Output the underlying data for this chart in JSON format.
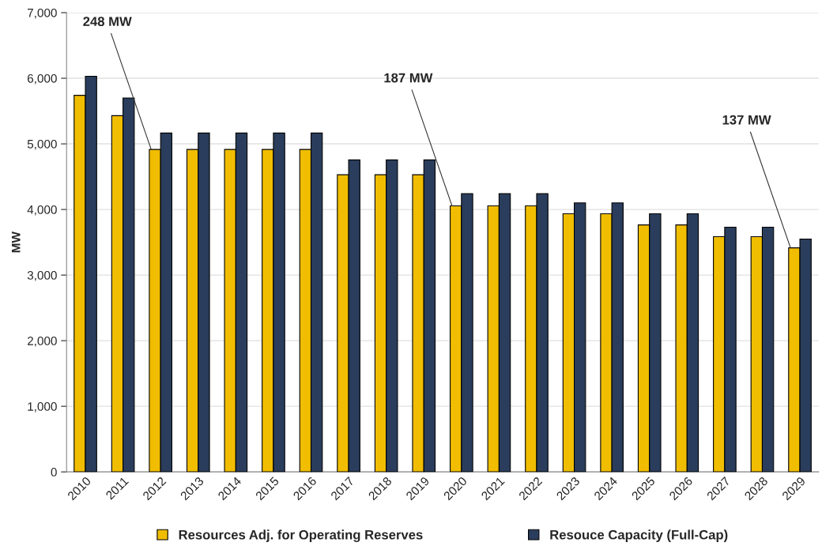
{
  "chart_data": {
    "type": "bar",
    "ylabel": "MW",
    "categories": [
      "2010",
      "2011",
      "2012",
      "2013",
      "2014",
      "2015",
      "2016",
      "2017",
      "2018",
      "2019",
      "2020",
      "2021",
      "2022",
      "2023",
      "2024",
      "2025",
      "2026",
      "2027",
      "2028",
      "2029"
    ],
    "series": [
      {
        "name": "Resources Adj. for Operating Reserves",
        "color": "#f0bd00",
        "values": [
          5740,
          5430,
          4915,
          4915,
          4915,
          4915,
          4915,
          4530,
          4530,
          4530,
          4055,
          4055,
          4055,
          3935,
          3935,
          3765,
          3765,
          3585,
          3585,
          3415
        ]
      },
      {
        "name": "Resouce Capacity (Full-Cap)",
        "color": "#2a3d5c",
        "values": [
          6030,
          5700,
          5165,
          5165,
          5165,
          5165,
          5165,
          4755,
          4755,
          4755,
          4240,
          4240,
          4240,
          4100,
          4100,
          3935,
          3935,
          3730,
          3730,
          3550
        ]
      }
    ],
    "annotations": [
      {
        "text": "248 MW",
        "x": "2012",
        "y": 4915
      },
      {
        "text": "187 MW",
        "x": "2020",
        "y": 4055
      },
      {
        "text": "137 MW",
        "x": "2029",
        "y": 3415
      }
    ],
    "ylim": [
      0,
      7000
    ],
    "yticks": [
      {
        "value": 0,
        "label": "0"
      },
      {
        "value": 1000,
        "label": "1,000"
      },
      {
        "value": 2000,
        "label": "2,000"
      },
      {
        "value": 3000,
        "label": "3,000"
      },
      {
        "value": 4000,
        "label": "4,000"
      },
      {
        "value": 5000,
        "label": "5,000"
      },
      {
        "value": 6000,
        "label": "6,000"
      },
      {
        "value": 7000,
        "label": "7,000"
      }
    ],
    "grid": "y",
    "legend": "bottom"
  }
}
